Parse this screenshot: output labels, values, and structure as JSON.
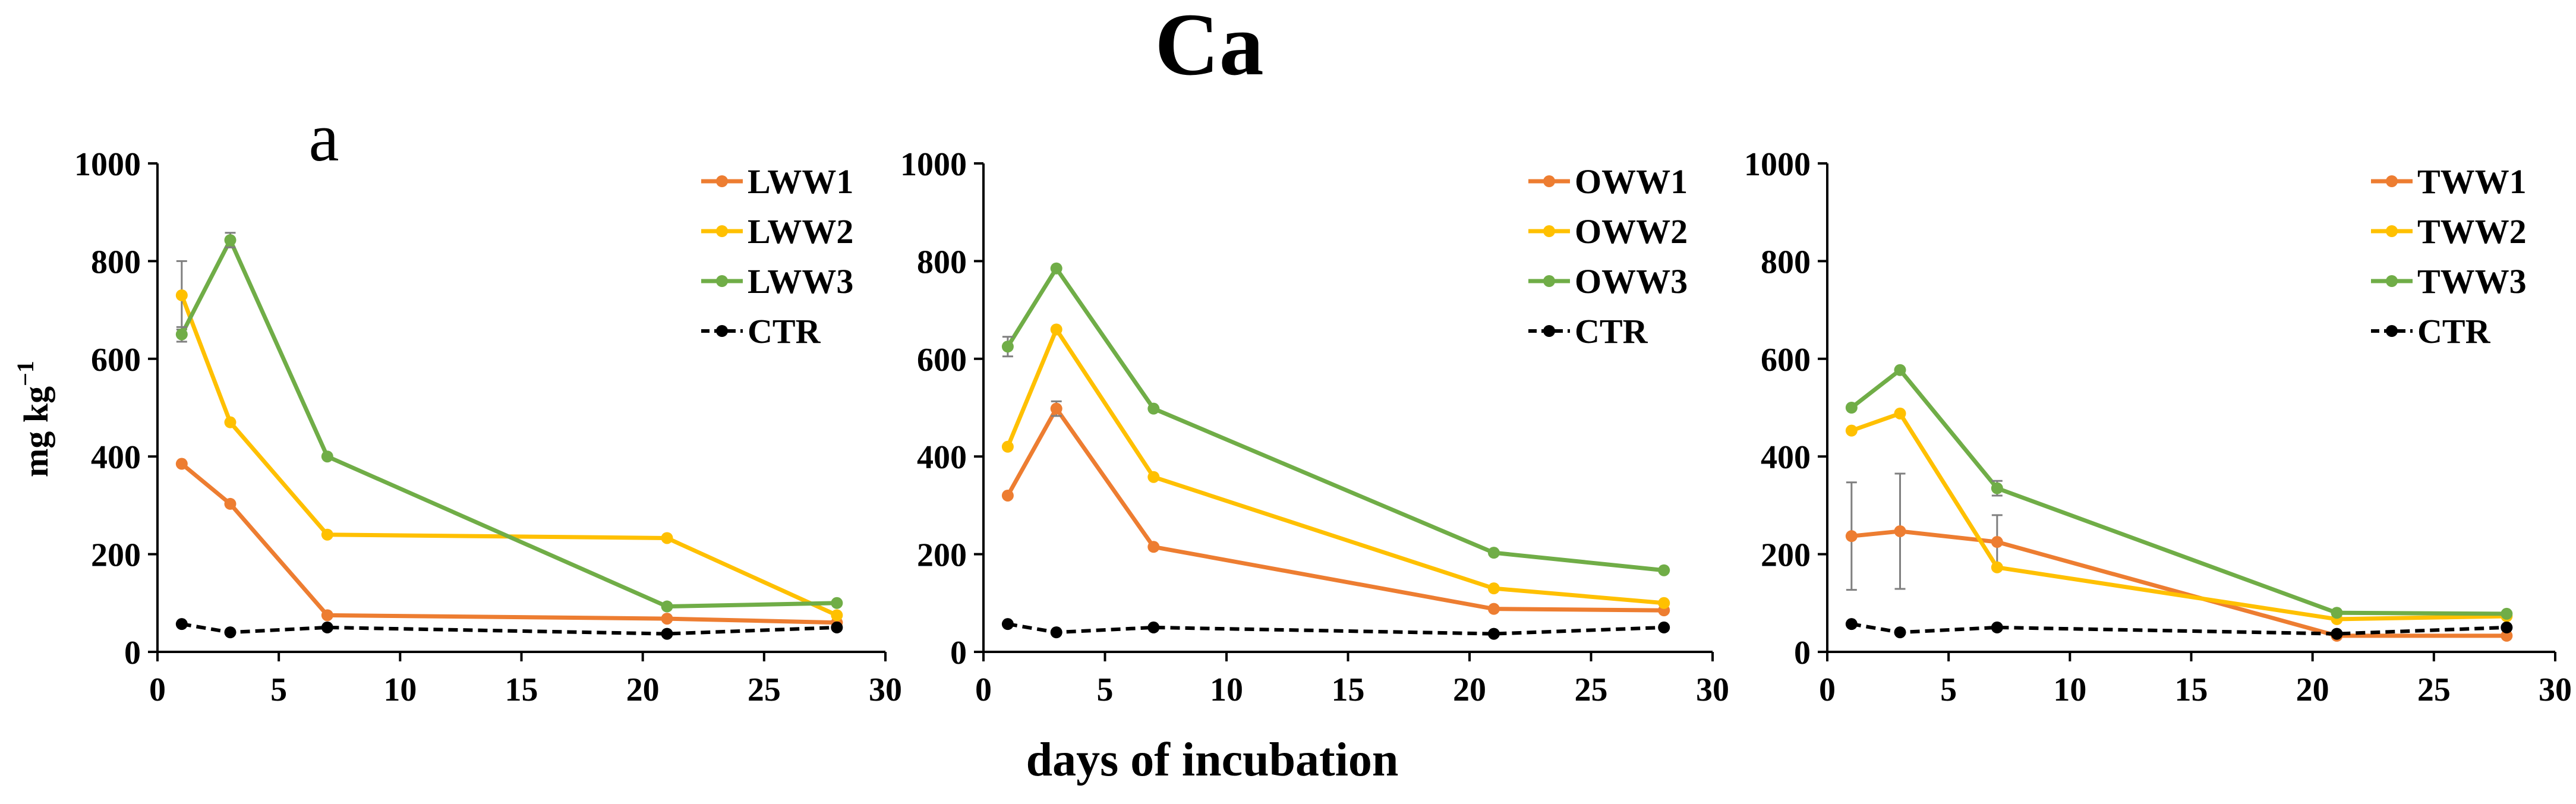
{
  "figure": {
    "title": "Ca",
    "xlabel": "days of incubation",
    "ylabel_base": "mg kg",
    "ylabel_sup": "−1",
    "panel_letter": "a"
  },
  "colors": {
    "ww1": "#ED7D31",
    "ww2": "#FFC000",
    "ww3": "#70AD47",
    "ctr": "#000000",
    "errorbar": "#7f7f7f"
  },
  "chart_data": [
    {
      "type": "line",
      "xlim": [
        0,
        30
      ],
      "ylim": [
        0,
        1000
      ],
      "xticks": [
        0,
        5,
        10,
        15,
        20,
        25,
        30
      ],
      "yticks": [
        0,
        200,
        400,
        600,
        800,
        1000
      ],
      "grid": false,
      "legend_position": "top-right",
      "x": [
        1,
        3,
        7,
        21,
        28
      ],
      "series": [
        {
          "name": "LWW1",
          "color_key": "ww1",
          "dashed": false,
          "values": [
            385,
            303,
            75,
            68,
            60
          ],
          "err": [
            0,
            0,
            0,
            0,
            0
          ]
        },
        {
          "name": "LWW2",
          "color_key": "ww2",
          "dashed": false,
          "values": [
            730,
            470,
            240,
            233,
            75
          ],
          "err": [
            70,
            0,
            0,
            0,
            0
          ]
        },
        {
          "name": "LWW3",
          "color_key": "ww3",
          "dashed": false,
          "values": [
            650,
            843,
            400,
            93,
            100
          ],
          "err": [
            15,
            15,
            0,
            0,
            0
          ]
        },
        {
          "name": "CTR",
          "color_key": "ctr",
          "dashed": true,
          "values": [
            57,
            40,
            50,
            37,
            50
          ],
          "err": [
            0,
            0,
            0,
            0,
            0
          ]
        }
      ]
    },
    {
      "type": "line",
      "xlim": [
        0,
        30
      ],
      "ylim": [
        0,
        1000
      ],
      "xticks": [
        0,
        5,
        10,
        15,
        20,
        25,
        30
      ],
      "yticks": [
        0,
        200,
        400,
        600,
        800,
        1000
      ],
      "grid": false,
      "legend_position": "top-right",
      "x": [
        1,
        3,
        7,
        21,
        28
      ],
      "series": [
        {
          "name": "OWW1",
          "color_key": "ww1",
          "dashed": false,
          "values": [
            320,
            498,
            215,
            88,
            85
          ],
          "err": [
            0,
            15,
            0,
            0,
            0
          ]
        },
        {
          "name": "OWW2",
          "color_key": "ww2",
          "dashed": false,
          "values": [
            420,
            660,
            358,
            130,
            100
          ],
          "err": [
            0,
            0,
            0,
            0,
            0
          ]
        },
        {
          "name": "OWW3",
          "color_key": "ww3",
          "dashed": false,
          "values": [
            625,
            785,
            498,
            203,
            167
          ],
          "err": [
            20,
            0,
            0,
            0,
            0
          ]
        },
        {
          "name": "CTR",
          "color_key": "ctr",
          "dashed": true,
          "values": [
            57,
            40,
            50,
            37,
            50
          ],
          "err": [
            0,
            0,
            0,
            0,
            0
          ]
        }
      ]
    },
    {
      "type": "line",
      "xlim": [
        0,
        30
      ],
      "ylim": [
        0,
        1000
      ],
      "xticks": [
        0,
        5,
        10,
        15,
        20,
        25,
        30
      ],
      "yticks": [
        0,
        200,
        400,
        600,
        800,
        1000
      ],
      "grid": false,
      "legend_position": "top-right",
      "x": [
        1,
        3,
        7,
        21,
        28
      ],
      "series": [
        {
          "name": "TWW1",
          "color_key": "ww1",
          "dashed": false,
          "values": [
            237,
            247,
            225,
            33,
            33
          ],
          "err": [
            110,
            118,
            55,
            0,
            0
          ]
        },
        {
          "name": "TWW2",
          "color_key": "ww2",
          "dashed": false,
          "values": [
            453,
            488,
            173,
            67,
            73
          ],
          "err": [
            0,
            0,
            0,
            0,
            0
          ]
        },
        {
          "name": "TWW3",
          "color_key": "ww3",
          "dashed": false,
          "values": [
            500,
            577,
            335,
            80,
            78
          ],
          "err": [
            0,
            0,
            15,
            0,
            0
          ]
        },
        {
          "name": "CTR",
          "color_key": "ctr",
          "dashed": true,
          "values": [
            57,
            40,
            50,
            37,
            50
          ],
          "err": [
            0,
            0,
            0,
            0,
            0
          ]
        }
      ]
    }
  ]
}
